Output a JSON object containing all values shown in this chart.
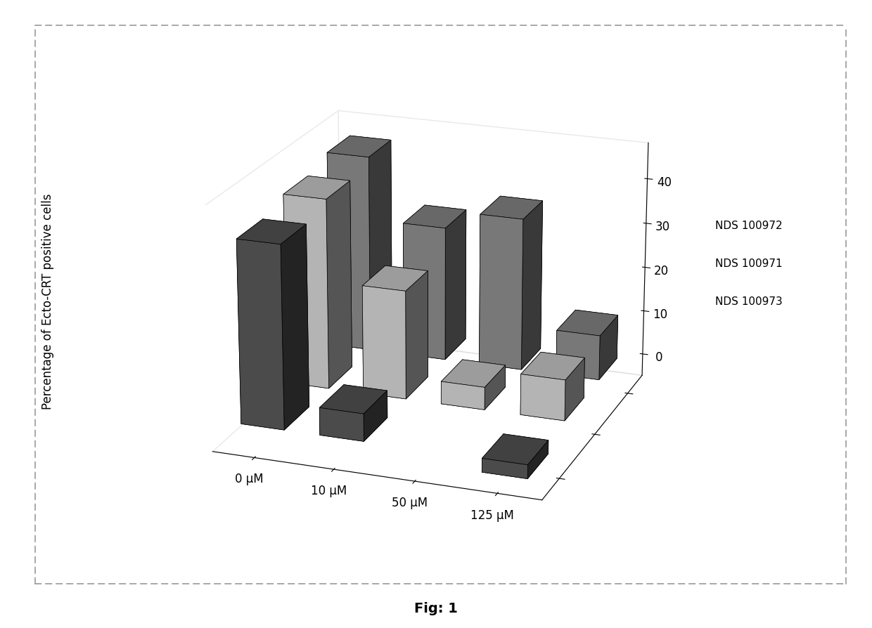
{
  "ylabel": "Percentage of Ecto-CRT positive cells",
  "categories": [
    "0 μM",
    "10 μM",
    "50 μM",
    "125 μM"
  ],
  "series_labels": [
    "NDS 100972",
    "NDS 100971",
    "NDS 100973"
  ],
  "values": [
    [
      40,
      6,
      0,
      -3
    ],
    [
      42,
      24,
      5,
      9
    ],
    [
      44,
      30,
      34,
      10
    ]
  ],
  "bar_face_colors": [
    "#555555",
    "#cccccc",
    "#888888"
  ],
  "bar_hatch": [
    "////",
    "....",
    "////"
  ],
  "ylim": [
    -5,
    48
  ],
  "yticks": [
    0,
    10,
    20,
    30,
    40
  ],
  "figure_caption": "Fig: 1",
  "background_color": "#ffffff",
  "border_color": "#999999",
  "elev": 20,
  "azim": -70,
  "bar_width": 0.55,
  "bar_depth": 0.55
}
